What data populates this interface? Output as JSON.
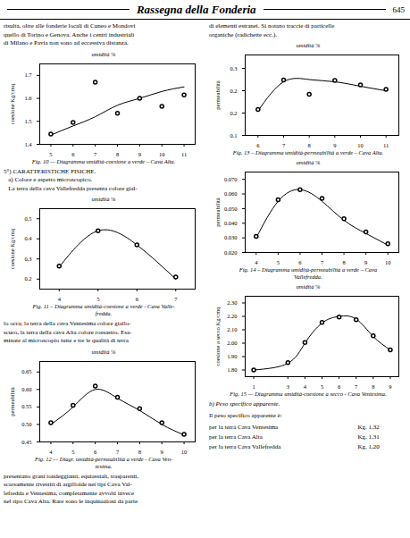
{
  "title": "Rassegna della Fonderia",
  "annotations": [
    "645",
    "risulta, oltre alle fonderie locali di Cuneo e Mondovì\nquello di Torino e Genova. Anche i centri industriali\ndi Milano e Pavia non sono ad eccessiva distanza.",
    "di elementi estranei. Si notano traccie di particelle\norganiche (radichette ecc.).",
    "5°) CARATTERISTICHE FISICHE.\n   a) Colore e aspetto microscopico.\n   La terra della cava Vallefredda presenta colore gial-",
    "lo ocra; la terra della cava Ventesima colore giallo-\nscuro, la terra della cava Alta colore rossastro. Esa-\nminate al microscopio tutte e tre le qualità di terra",
    "presentano grani tondeggianti, equiassiali, trasparenti,\nscarsamente rivestiti di argilloïde nei tipi Cava Val-\nlefredda e Ventesima, completamente avvolti invece\nnel tipo Cava Alta. Rare sono le inquinazioni da parte",
    "b) Peso specifico apparente.",
    "Il peso specifico apparente è:",
    "per la terra Cava Ventesima",
    "Kg. 1,32",
    "per la terra Cava Alta",
    "Kg. 1,31",
    "per la terra Cava Vallefredda",
    "Kg. 1,20"
  ],
  "chart_data": [
    {
      "type": "line",
      "title": "Fig. 10 — Diagramma umidità-coesione a verde – Cava Alta.",
      "xlabel": "umidità %",
      "ylabel": "coesione Kg/cmq",
      "x": [
        5,
        6,
        7,
        8,
        9,
        10,
        11
      ],
      "series": [
        {
          "type": "line",
          "color": "#000000",
          "values": [
            1.44,
            1.48,
            1.52,
            1.57,
            1.6,
            1.63,
            1.65
          ]
        },
        {
          "type": "scatter",
          "color": "#000000",
          "marker": "circle",
          "values": [
            1.445,
            1.495,
            1.67,
            1.535,
            1.6,
            1.565,
            1.615
          ]
        }
      ],
      "xlim": [
        4.5,
        11.5
      ],
      "ylim": [
        1.4,
        1.75
      ],
      "xticks": [
        5,
        6,
        7,
        8,
        9,
        10,
        11
      ],
      "yticks": [
        1.4,
        1.5,
        1.6,
        1.7
      ]
    },
    {
      "type": "line",
      "title": "Fig. 11 – Diagramma umidità-coesione a verde - Cava Valle-\nfredda.",
      "xlabel": "umidità %",
      "ylabel": "coesione Kg/cmq",
      "x": [
        4,
        5,
        6,
        7
      ],
      "series": [
        {
          "type": "line",
          "color": "#000000",
          "values": [
            0.26,
            0.44,
            0.37,
            0.2
          ]
        },
        {
          "type": "scatter",
          "color": "#000000",
          "marker": "circle",
          "values": [
            0.265,
            0.44,
            0.37,
            0.21
          ]
        }
      ],
      "xlim": [
        3.5,
        7.5
      ],
      "ylim": [
        0.15,
        0.55
      ],
      "xticks": [
        4,
        5,
        6,
        7
      ],
      "yticks": [
        0.2,
        0.3,
        0.4,
        0.5
      ]
    },
    {
      "type": "line",
      "title": "Fig. 12 — Diagr. umidità-permeabilità a verde - Cava Ven-\ntesima.",
      "xlabel": "umidità %",
      "ylabel": "permeabilità",
      "x": [
        4,
        5,
        6,
        7,
        8,
        9,
        10
      ],
      "series": [
        {
          "type": "line",
          "color": "#000000",
          "values": [
            0.5,
            0.55,
            0.6,
            0.575,
            0.54,
            0.5,
            0.47
          ]
        },
        {
          "type": "scatter",
          "color": "#000000",
          "marker": "circle",
          "values": [
            0.505,
            0.555,
            0.61,
            0.578,
            0.545,
            0.505,
            0.472
          ]
        }
      ],
      "xlim": [
        3.5,
        10.5
      ],
      "ylim": [
        0.45,
        0.68
      ],
      "xticks": [
        4,
        5,
        6,
        7,
        8,
        9,
        10
      ],
      "yticks": [
        0.45,
        {
          "value": 0.5,
          "label": "0.50"
        },
        0.55,
        {
          "value": 0.6,
          "label": "0.60"
        },
        0.65
      ]
    },
    {
      "type": "line",
      "title": "Fig. 13 – Diagramma umidità-permeabilità a verde – Cava Alta.",
      "xlabel": "umidità %",
      "ylabel": "permeabilità",
      "x": [
        6,
        7,
        8,
        9,
        10,
        11
      ],
      "series": [
        {
          "type": "line",
          "color": "#000000",
          "values": [
            0.155,
            0.22,
            0.225,
            0.22,
            0.21,
            0.2
          ]
        },
        {
          "type": "scatter",
          "color": "#000000",
          "marker": "circle",
          "values": [
            0.158,
            0.224,
            0.192,
            0.223,
            0.213,
            0.203
          ]
        }
      ],
      "xlim": [
        5.5,
        11.5
      ],
      "ylim": [
        0.1,
        0.28
      ],
      "xticks": [
        6,
        7,
        8,
        9,
        10,
        11
      ],
      "yticks": [
        0.1,
        {
          "value": 0.15,
          "label": "0.2"
        },
        {
          "value": 0.2,
          "label": "0.2"
        },
        {
          "value": 0.25,
          "label": "0.3"
        }
      ]
    },
    {
      "type": "line",
      "title": "Fig. 14 – Diagramma umidità-permeabilità a verde – Cava\nVallefredda.",
      "xlabel": "umidità %",
      "ylabel": "permeabilità",
      "x": [
        4,
        5,
        6,
        7,
        8,
        9,
        10
      ],
      "series": [
        {
          "type": "line",
          "color": "#000000",
          "values": [
            0.03,
            0.055,
            0.063,
            0.055,
            0.042,
            0.033,
            0.025
          ]
        },
        {
          "type": "scatter",
          "color": "#000000",
          "marker": "circle",
          "values": [
            0.031,
            0.056,
            0.063,
            0.057,
            0.043,
            0.034,
            0.026
          ]
        }
      ],
      "xlim": [
        3.5,
        10.5
      ],
      "ylim": [
        0.02,
        0.075
      ],
      "xticks": [
        4,
        5,
        6,
        7,
        8,
        9,
        10
      ],
      "yticks": [
        {
          "value": 0.02,
          "label": "0.020"
        },
        {
          "value": 0.03,
          "label": "0.030"
        },
        {
          "value": 0.04,
          "label": "0.040"
        },
        {
          "value": 0.05,
          "label": "0.050"
        },
        {
          "value": 0.06,
          "label": "0.060"
        },
        {
          "value": 0.07,
          "label": "0.070"
        }
      ]
    },
    {
      "type": "line",
      "title": "Fig. 15 — Diagramma umidità-coesione a secco - Cava Ventesima.",
      "xlabel": "umidità %",
      "ylabel": "coesione a secco Kg/cmq",
      "x": [
        1,
        3,
        4,
        5,
        6,
        7,
        8,
        9
      ],
      "series": [
        {
          "type": "line",
          "color": "#000000",
          "values": [
            1.8,
            1.85,
            2.0,
            2.15,
            2.2,
            2.18,
            2.05,
            1.95
          ]
        },
        {
          "type": "scatter",
          "color": "#000000",
          "marker": "circle",
          "values": [
            1.8,
            1.855,
            2.005,
            2.155,
            2.195,
            2.175,
            2.055,
            1.95
          ]
        }
      ],
      "xlim": [
        0.5,
        9.5
      ],
      "ylim": [
        1.75,
        2.35
      ],
      "xticks": [
        1,
        3,
        4,
        5,
        6,
        7,
        8,
        9
      ],
      "yticks": [
        {
          "value": 1.8,
          "label": "1.80"
        },
        {
          "value": 1.9,
          "label": "1.90"
        },
        {
          "value": 2.0,
          "label": "2.00"
        },
        {
          "value": 2.1,
          "label": "2.10"
        },
        {
          "value": 2.2,
          "label": "2.20"
        },
        {
          "value": 2.3,
          "label": "2.30"
        }
      ]
    }
  ]
}
